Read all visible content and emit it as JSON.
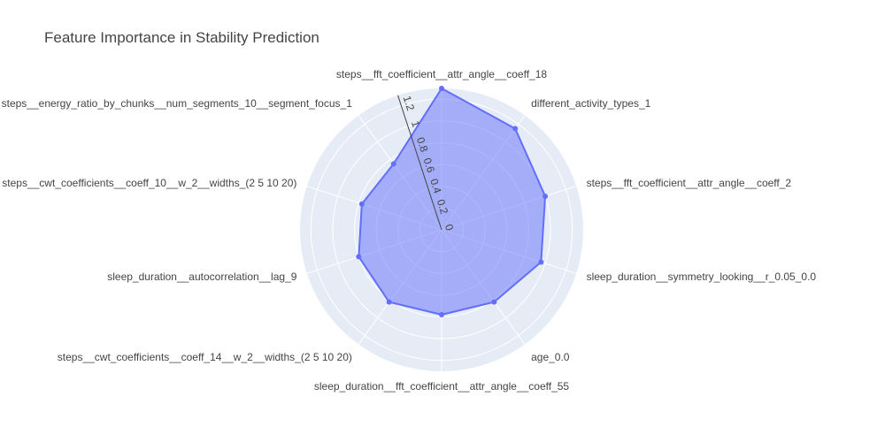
{
  "chart_data": {
    "type": "radar",
    "title": "Feature Importance in Stability Prediction",
    "radial_range": [
      0,
      1.3
    ],
    "radial_ticks": [
      0,
      0.2,
      0.4,
      0.6,
      0.8,
      1,
      1.2
    ],
    "radial_tick_labels": [
      "0",
      "0.2",
      "0.4",
      "0.6",
      "0.8",
      "1",
      "1.2"
    ],
    "categories": [
      "steps__fft_coefficient__attr_angle__coeff_18",
      "different_activity_types_1",
      "steps__fft_coefficient__attr_angle__coeff_2",
      "sleep_duration__symmetry_looking__r_0.05_0.0",
      "age_0.0",
      "sleep_duration__fft_coefficient__attr_angle__coeff_55",
      "steps__cwt_coefficients__coeff_14__w_2__widths_(2 5 10 20)",
      "sleep_duration__autocorrelation__lag_9",
      "steps__cwt_coefficients__coeff_10__w_2__widths_(2 5 10 20)",
      "steps__energy_ratio_by_chunks__num_segments_10__segment_focus_1"
    ],
    "values": [
      1.3,
      1.15,
      1.0,
      0.96,
      0.82,
      0.78,
      0.82,
      0.8,
      0.77,
      0.75
    ],
    "colors": {
      "line": "#636efa",
      "fill": "rgba(99,110,250,0.5)",
      "polar_bg": "#e5ecf6",
      "grid": "#ffffff"
    },
    "grid": true
  }
}
